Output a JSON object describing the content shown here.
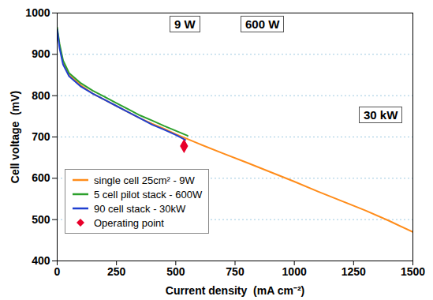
{
  "chart_data": {
    "type": "line",
    "x_label": "Current density  (mA cm⁻²)",
    "y_label": "Cell voltage  (mV)",
    "xlim": [
      0,
      1500
    ],
    "ylim": [
      400,
      1000
    ],
    "xticks": [
      0,
      250,
      500,
      750,
      1000,
      1250,
      1500
    ],
    "yticks": [
      400,
      500,
      600,
      700,
      800,
      900,
      1000
    ],
    "grid": true,
    "legend": "lower left",
    "annotations": [
      "9 W",
      "600 W",
      "30 kW"
    ],
    "series": [
      {
        "name": "single cell 25cm² - 9W",
        "color": "#ff8c1a",
        "x": [
          0,
          10,
          25,
          50,
          100,
          150,
          200,
          250,
          300,
          350,
          400,
          450,
          500,
          550,
          600,
          700,
          800,
          900,
          1000,
          1100,
          1200,
          1300,
          1400,
          1500
        ],
        "values": [
          960,
          920,
          880,
          850,
          825,
          805,
          790,
          775,
          760,
          745,
          732,
          720,
          707,
          695,
          683,
          660,
          638,
          615,
          592,
          568,
          545,
          522,
          497,
          470
        ]
      },
      {
        "name": "5 cell pilot stack - 600W",
        "color": "#2ca02c",
        "x": [
          0,
          10,
          25,
          50,
          100,
          150,
          200,
          250,
          300,
          350,
          400,
          450,
          500,
          550
        ],
        "values": [
          965,
          925,
          885,
          855,
          830,
          812,
          797,
          782,
          767,
          752,
          740,
          727,
          715,
          703
        ]
      },
      {
        "name": "90 cell stack - 30kW",
        "color": "#1f3fd0",
        "x": [
          0,
          10,
          25,
          50,
          100,
          150,
          200,
          250,
          300,
          350,
          400,
          450,
          500,
          540
        ],
        "values": [
          960,
          915,
          875,
          847,
          822,
          805,
          790,
          775,
          760,
          745,
          730,
          718,
          705,
          693
        ]
      },
      {
        "name": "Operating point",
        "type": "scatter",
        "marker": "diamond",
        "color": "#e8002a",
        "x": [
          535
        ],
        "values": [
          678
        ]
      }
    ]
  }
}
